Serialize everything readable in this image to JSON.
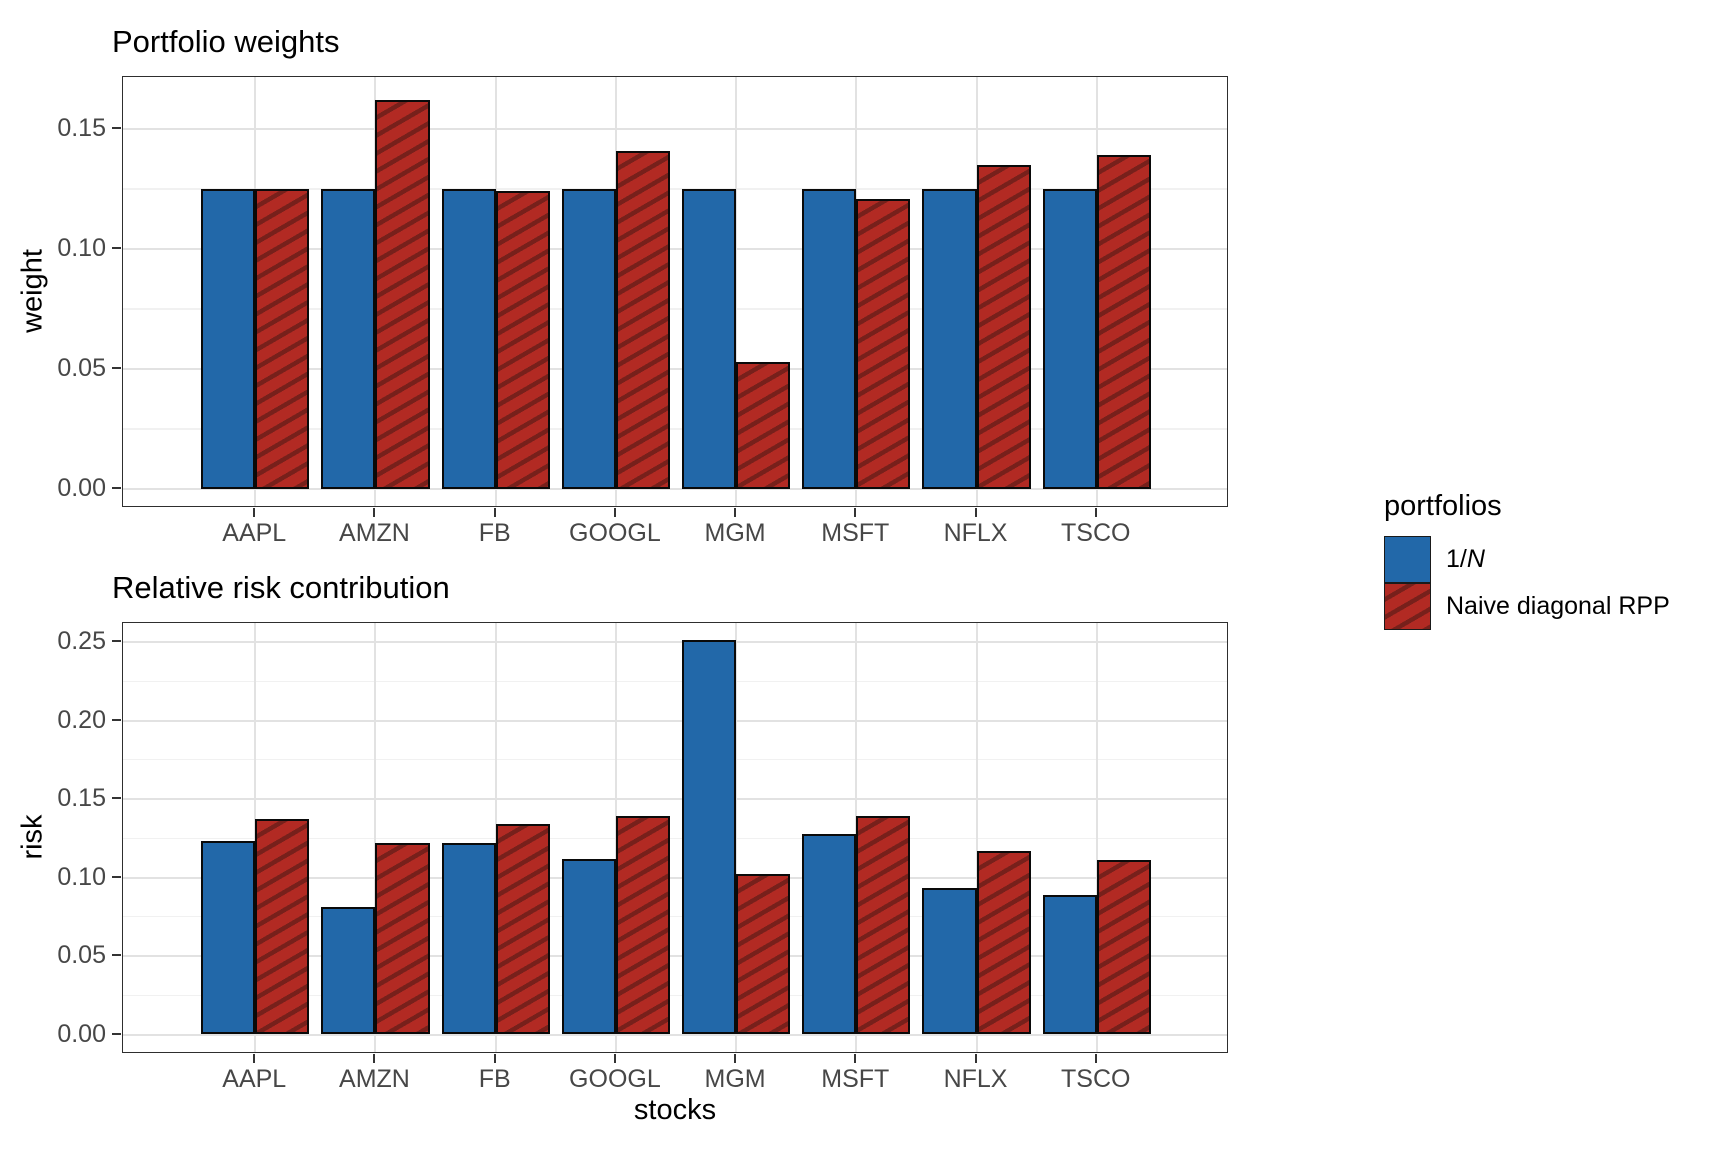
{
  "xlabel": "stocks",
  "legend": {
    "title": "portfolios",
    "items": [
      {
        "key_style": "solid-blue",
        "key_name": "legend-key-blue-solid",
        "segments": [
          {
            "t": "1/"
          },
          {
            "t": "N",
            "i": true
          }
        ]
      },
      {
        "key_style": "hatched-red",
        "key_name": "legend-key-red-hatched",
        "segments": [
          {
            "t": "Naive diagonal RPP"
          }
        ]
      }
    ]
  },
  "palette": {
    "blue": "#2268a9",
    "red": "#b22a23",
    "red_hatch_dark": "#77201b",
    "bar_border": "#0a0a0a",
    "grid_major": "#e2e2e2",
    "grid_minor": "#f1f1f1",
    "panel_border": "#2e2e2e",
    "tick_text": "#474747",
    "title_text": "#000000"
  },
  "chart_data": [
    {
      "type": "bar",
      "title": "Portfolio weights",
      "xlabel": "",
      "ylabel": "weight",
      "categories": [
        "AAPL",
        "AMZN",
        "FB",
        "GOOGL",
        "MGM",
        "MSFT",
        "NFLX",
        "TSCO"
      ],
      "ytick_labels": [
        "0.00",
        "0.05",
        "0.10",
        "0.15"
      ],
      "ytick_values": [
        0,
        0.05,
        0.1,
        0.15
      ],
      "ylim": [
        0,
        0.172
      ],
      "grid": true,
      "legend_position": "right",
      "series": [
        {
          "name": "1/N",
          "values": [
            0.125,
            0.125,
            0.125,
            0.125,
            0.125,
            0.125,
            0.125,
            0.125
          ]
        },
        {
          "name": "Naive diagonal RPP",
          "values": [
            0.125,
            0.162,
            0.124,
            0.141,
            0.053,
            0.121,
            0.135,
            0.139
          ]
        }
      ]
    },
    {
      "type": "bar",
      "title": "Relative risk contribution",
      "xlabel": "stocks",
      "ylabel": "risk",
      "categories": [
        "AAPL",
        "AMZN",
        "FB",
        "GOOGL",
        "MGM",
        "MSFT",
        "NFLX",
        "TSCO"
      ],
      "ytick_labels": [
        "0.00",
        "0.05",
        "0.10",
        "0.15",
        "0.20",
        "0.25"
      ],
      "ytick_values": [
        0,
        0.05,
        0.1,
        0.15,
        0.2,
        0.25
      ],
      "ylim": [
        0,
        0.262
      ],
      "grid": true,
      "legend_position": "right",
      "series": [
        {
          "name": "1/N",
          "values": [
            0.123,
            0.081,
            0.122,
            0.112,
            0.251,
            0.128,
            0.093,
            0.089
          ]
        },
        {
          "name": "Naive diagonal RPP",
          "values": [
            0.137,
            0.122,
            0.134,
            0.139,
            0.102,
            0.139,
            0.117,
            0.111
          ]
        }
      ]
    }
  ]
}
